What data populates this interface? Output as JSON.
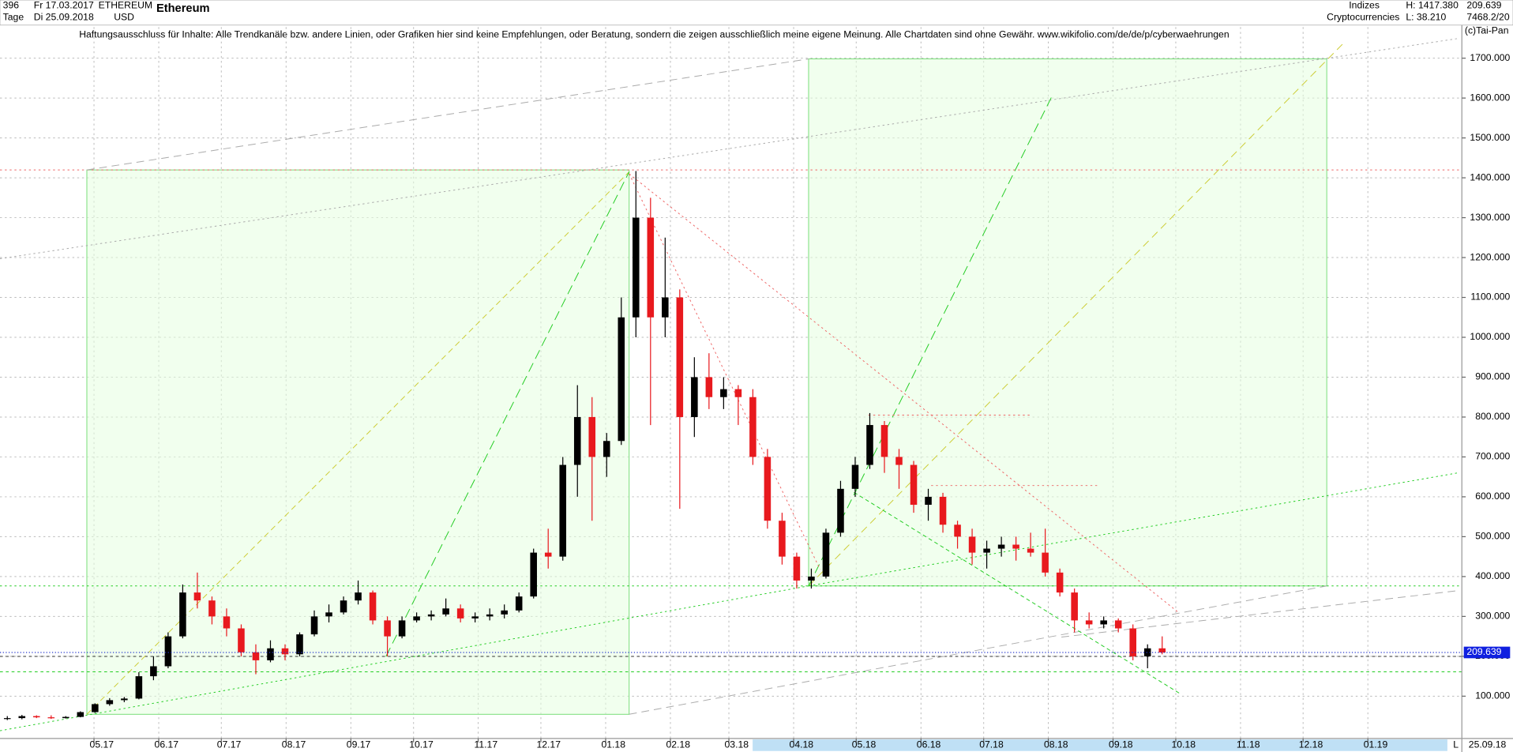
{
  "header": {
    "count": "396",
    "start": "Fr 17.03.2017",
    "unit": "Tage",
    "end": "Di 25.09.2018",
    "symbol": "ETHEREUM",
    "currency": "USD",
    "name": "Ethereum",
    "group": "Indizes",
    "sector": "Cryptocurrencies",
    "high": "H: 1417.380",
    "low": "L: 38.210",
    "last": "209.639",
    "volume": "7468.2/20",
    "copyright": "(c)Tai-Pan",
    "disclaimer": "Haftungsausschluss für Inhalte: Alle Trendkanäle bzw. andere Linien, oder Grafiken hier sind keine Empfehlungen, oder Beratung, sondern die zeigen ausschließlich meine eigene Meinung. Alle Chartdaten sind ohne Gewähr.  www.wikifolio.com/de/de/p/cyberwaehrungen",
    "scale_mode": "L",
    "date": "25.09.18"
  },
  "chart_data": {
    "type": "candlestick",
    "up_color": "#000000",
    "down_color": "#e8191e",
    "grid": true,
    "last_price": 209.639,
    "open": [
      43,
      45,
      50,
      47,
      45,
      48,
      60,
      80,
      90,
      94,
      150,
      175,
      250,
      360,
      340,
      300,
      270,
      210,
      190,
      220,
      205,
      255,
      300,
      310,
      340,
      360,
      290,
      250,
      290,
      300,
      305,
      320,
      295,
      300,
      305,
      315,
      350,
      460,
      450,
      680,
      800,
      700,
      740,
      1050,
      1300,
      1050,
      1100,
      800,
      900,
      850,
      870,
      850,
      700,
      540,
      450,
      390,
      400,
      510,
      620,
      680,
      780,
      700,
      680,
      580,
      600,
      530,
      500,
      460,
      470,
      480,
      470,
      460,
      410,
      360,
      290,
      280,
      290,
      270,
      200,
      220
    ],
    "high": [
      50,
      53,
      52,
      52,
      50,
      62,
      82,
      95,
      98,
      160,
      200,
      260,
      380,
      410,
      350,
      320,
      280,
      230,
      240,
      230,
      260,
      315,
      330,
      350,
      390,
      365,
      300,
      300,
      310,
      315,
      345,
      330,
      310,
      320,
      330,
      360,
      470,
      520,
      700,
      880,
      850,
      760,
      1100,
      1417,
      1350,
      1250,
      1120,
      950,
      960,
      900,
      880,
      870,
      720,
      560,
      460,
      420,
      520,
      640,
      700,
      810,
      790,
      720,
      690,
      620,
      610,
      540,
      520,
      490,
      500,
      500,
      510,
      520,
      420,
      370,
      310,
      300,
      295,
      280,
      230,
      250
    ],
    "low": [
      40,
      42,
      45,
      43,
      44,
      47,
      58,
      76,
      85,
      92,
      140,
      170,
      245,
      320,
      280,
      250,
      200,
      155,
      185,
      190,
      200,
      250,
      285,
      305,
      330,
      280,
      200,
      245,
      285,
      290,
      300,
      285,
      285,
      290,
      295,
      310,
      345,
      420,
      440,
      600,
      540,
      650,
      730,
      1000,
      780,
      1000,
      570,
      750,
      820,
      820,
      780,
      680,
      520,
      430,
      370,
      370,
      395,
      500,
      600,
      670,
      660,
      620,
      560,
      540,
      510,
      470,
      430,
      420,
      450,
      440,
      450,
      400,
      350,
      260,
      270,
      270,
      260,
      190,
      170,
      205
    ],
    "close": [
      45,
      50,
      47,
      45,
      48,
      60,
      80,
      90,
      94,
      150,
      175,
      250,
      360,
      340,
      300,
      270,
      210,
      190,
      220,
      205,
      255,
      300,
      310,
      340,
      360,
      290,
      250,
      290,
      300,
      305,
      320,
      295,
      300,
      305,
      315,
      350,
      460,
      450,
      680,
      800,
      700,
      740,
      1050,
      1300,
      1050,
      1100,
      800,
      900,
      850,
      870,
      850,
      700,
      540,
      450,
      390,
      400,
      510,
      620,
      680,
      780,
      700,
      680,
      580,
      600,
      530,
      500,
      460,
      470,
      480,
      470,
      460,
      410,
      360,
      290,
      280,
      290,
      270,
      200,
      220,
      209.639
    ],
    "ylim": [
      -6,
      1778
    ],
    "yticks": [
      {
        "value": 100,
        "label": "100.000"
      },
      {
        "value": 200,
        "label": "200.000"
      },
      {
        "value": 300,
        "label": "300.000"
      },
      {
        "value": 400,
        "label": "400.000"
      },
      {
        "value": 500,
        "label": "500.000"
      },
      {
        "value": 600,
        "label": "600.000"
      },
      {
        "value": 700,
        "label": "700.000"
      },
      {
        "value": 800,
        "label": "800.000"
      },
      {
        "value": 900,
        "label": "900.000"
      },
      {
        "value": 1000,
        "label": "1000.000"
      },
      {
        "value": 1100,
        "label": "1100.000"
      },
      {
        "value": 1200,
        "label": "1200.000"
      },
      {
        "value": 1300,
        "label": "1300.000"
      },
      {
        "value": 1400,
        "label": "1400.000"
      },
      {
        "value": 1500,
        "label": "1500.000"
      },
      {
        "value": 1600,
        "label": "1600.000"
      },
      {
        "value": 1700,
        "label": "1700.000"
      }
    ],
    "xlim": [
      0,
      100
    ],
    "xticks": [
      {
        "value": 6.43,
        "label": "05.17"
      },
      {
        "value": 10.86,
        "label": "06.17"
      },
      {
        "value": 15.14,
        "label": "07.17"
      },
      {
        "value": 19.57,
        "label": "08.17"
      },
      {
        "value": 24,
        "label": "09.17"
      },
      {
        "value": 28.29,
        "label": "10.17"
      },
      {
        "value": 32.71,
        "label": "11.17"
      },
      {
        "value": 37,
        "label": "12.17"
      },
      {
        "value": 41.43,
        "label": "01.18"
      },
      {
        "value": 45.86,
        "label": "02.18"
      },
      {
        "value": 49.86,
        "label": "03.18"
      },
      {
        "value": 54.29,
        "label": "04.18"
      },
      {
        "value": 58.57,
        "label": "05.18"
      },
      {
        "value": 63,
        "label": "06.18"
      },
      {
        "value": 67.29,
        "label": "07.18"
      },
      {
        "value": 71.71,
        "label": "08.18"
      },
      {
        "value": 76.14,
        "label": "09.18"
      },
      {
        "value": 80.43,
        "label": "10.18"
      },
      {
        "value": 84.86,
        "label": "11.18"
      },
      {
        "value": 89.14,
        "label": "12.18"
      },
      {
        "value": 93.57,
        "label": "01.19"
      }
    ]
  }
}
